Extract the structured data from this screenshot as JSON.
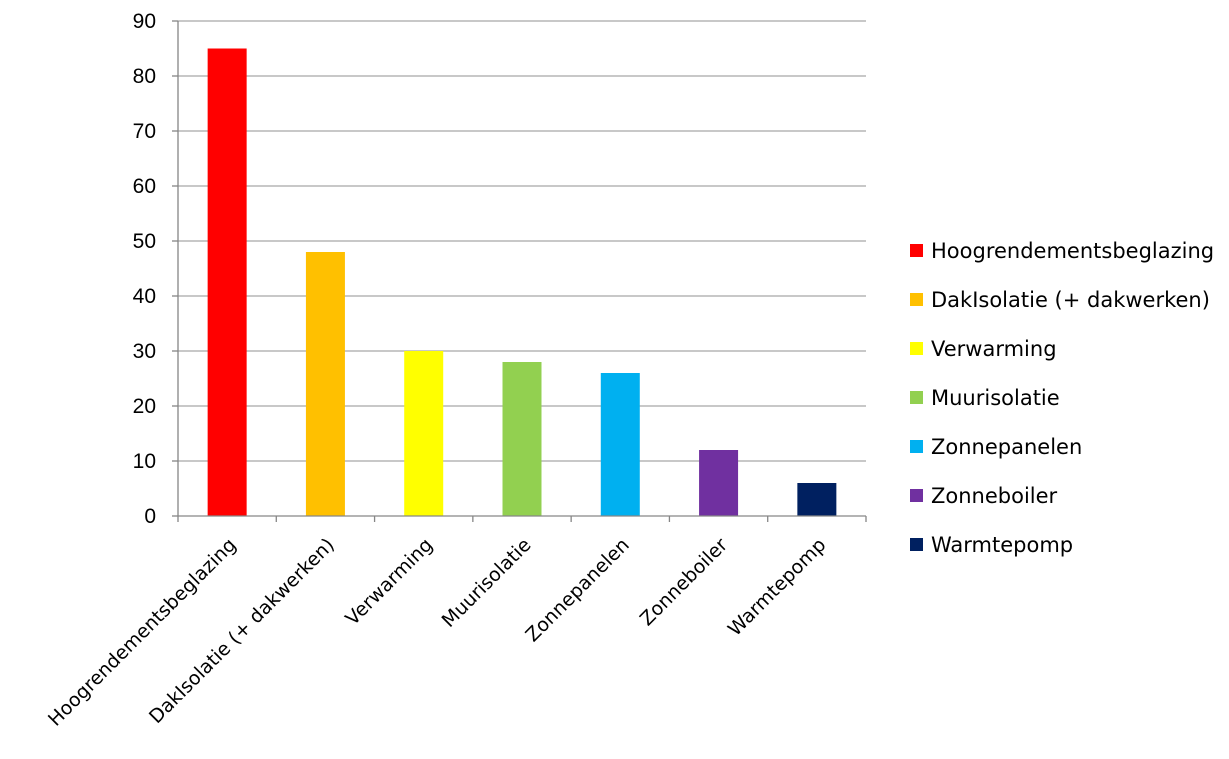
{
  "chart_data": {
    "type": "bar",
    "title": "",
    "xlabel": "",
    "ylabel": "",
    "ylim": [
      0,
      90
    ],
    "yticks": [
      0,
      10,
      20,
      30,
      40,
      50,
      60,
      70,
      80,
      90
    ],
    "grid": true,
    "legend_placement": "right",
    "categories": [
      "Hoogrendementsbeglazing",
      "DakIsolatie (+ dakwerken)",
      "Verwarming",
      "Muurisolatie",
      "Zonnepanelen",
      "Zonneboiler",
      "Warmtepomp"
    ],
    "values": [
      85,
      48,
      30,
      28,
      26,
      12,
      6
    ],
    "colors": [
      "#ff0000",
      "#ffc000",
      "#ffff00",
      "#92d050",
      "#00b0f0",
      "#7030a0",
      "#002060"
    ]
  }
}
